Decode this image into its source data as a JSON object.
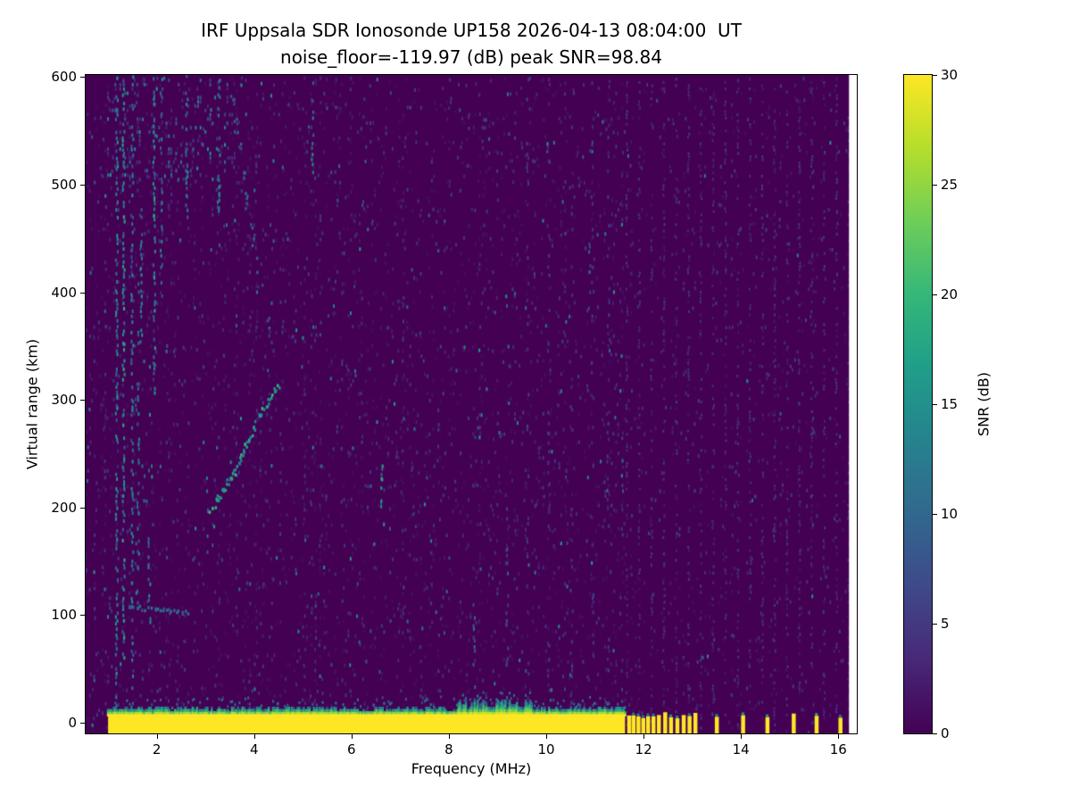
{
  "chart_data": {
    "type": "heatmap",
    "title": "IRF Uppsala SDR Ionosonde UP158 2026-04-13 08:04:00  UT",
    "subtitle": "noise_floor=-119.97 (dB) peak SNR=98.84",
    "station": "UP158",
    "timestamp_ut": "2026-04-13 08:04:00",
    "noise_floor_db": -119.97,
    "peak_snr_db": 98.84,
    "xlabel": "Frequency (MHz)",
    "ylabel": "Virtual range (km)",
    "colorbar_label": "SNR (dB)",
    "xlim": [
      0.54,
      16.38
    ],
    "ylim": [
      -10,
      602
    ],
    "xticks": [
      2,
      4,
      6,
      8,
      10,
      12,
      14,
      16
    ],
    "yticks": [
      0,
      100,
      200,
      300,
      400,
      500,
      600
    ],
    "colorbar_ticks": [
      0,
      5,
      10,
      15,
      20,
      25,
      30
    ],
    "colorbar_range": [
      0,
      30
    ],
    "grid": false,
    "legend": "none",
    "colormap": "viridis",
    "colormap_stops": [
      "#440154",
      "#482878",
      "#3e4989",
      "#31688e",
      "#26828e",
      "#1f9e89",
      "#35b779",
      "#6ece58",
      "#b5de2b",
      "#fde725"
    ],
    "features": {
      "background_snr": 0,
      "data_freq_range_mhz": [
        0.54,
        16.22
      ],
      "ground_pulse": {
        "f0": 1.0,
        "f1": 11.62,
        "y0": -10,
        "y1": 8,
        "snr": 30,
        "fringe_max_km": 16,
        "bulge": {
          "f0": 8.2,
          "f1": 9.7,
          "y1": 18
        }
      },
      "interference_spikes_mhz": [
        11.7,
        11.79,
        11.89,
        11.99,
        12.09,
        12.2,
        12.31,
        12.44,
        12.56,
        12.69,
        12.82,
        12.94,
        13.06,
        13.5,
        14.04,
        14.54,
        15.08,
        15.55,
        16.04
      ],
      "stripe_spacing_mhz": 0.253,
      "echo_trace": {
        "snr": 16,
        "points": [
          [
            3.1,
            196
          ],
          [
            3.3,
            210
          ],
          [
            3.5,
            225
          ],
          [
            3.7,
            243
          ],
          [
            3.85,
            258
          ],
          [
            4.0,
            272
          ],
          [
            4.15,
            288
          ],
          [
            4.3,
            300
          ],
          [
            4.42,
            308
          ],
          [
            4.55,
            311
          ]
        ]
      },
      "second_hop_trace": {
        "snr": 8,
        "points": [
          [
            3.55,
            590
          ],
          [
            3.75,
            520
          ],
          [
            3.95,
            460
          ],
          [
            4.15,
            405
          ],
          [
            4.35,
            360
          ]
        ]
      },
      "sporadic_e": {
        "snr": 10,
        "points": [
          [
            1.4,
            107
          ],
          [
            1.75,
            106
          ],
          [
            2.1,
            104
          ],
          [
            2.45,
            103
          ],
          [
            2.7,
            102
          ]
        ]
      },
      "dense_noise_region": {
        "f0": 1.0,
        "f1": 3.6,
        "y0": 505,
        "y1": 600,
        "snr_max": 18,
        "density": 0.13
      },
      "noise_streaks": [
        {
          "f": 1.18,
          "y0": 0,
          "y1": 600,
          "snr": 14,
          "density": 0.5
        },
        {
          "f": 1.32,
          "y0": 60,
          "y1": 600,
          "snr": 16,
          "density": 0.6
        },
        {
          "f": 1.5,
          "y0": 0,
          "y1": 600,
          "snr": 13,
          "density": 0.45
        },
        {
          "f": 1.62,
          "y0": 100,
          "y1": 420,
          "snr": 12,
          "density": 0.35
        },
        {
          "f": 1.68,
          "y0": 350,
          "y1": 480,
          "snr": 13,
          "density": 0.4
        },
        {
          "f": 1.85,
          "y0": 80,
          "y1": 180,
          "snr": 12,
          "density": 0.35
        },
        {
          "f": 1.95,
          "y0": 300,
          "y1": 600,
          "snr": 15,
          "density": 0.55
        },
        {
          "f": 2.1,
          "y0": 380,
          "y1": 600,
          "snr": 12,
          "density": 0.4
        },
        {
          "f": 2.6,
          "y0": 195,
          "y1": 220,
          "snr": 10,
          "density": 0.3
        },
        {
          "f": 2.62,
          "y0": 470,
          "y1": 600,
          "snr": 14,
          "density": 0.5
        },
        {
          "f": 3.05,
          "y0": 150,
          "y1": 230,
          "snr": 12,
          "density": 0.4
        },
        {
          "f": 3.28,
          "y0": 430,
          "y1": 600,
          "snr": 12,
          "density": 0.4
        },
        {
          "f": 5.2,
          "y0": 500,
          "y1": 600,
          "snr": 13,
          "density": 0.45
        },
        {
          "f": 6.62,
          "y0": 200,
          "y1": 240,
          "snr": 16,
          "density": 0.8
        },
        {
          "f": 8.52,
          "y0": 0,
          "y1": 120,
          "snr": 9,
          "density": 0.3
        },
        {
          "f": 9.2,
          "y0": 0,
          "y1": 200,
          "snr": 8,
          "density": 0.25
        },
        {
          "f": 9.62,
          "y0": -10,
          "y1": 600,
          "snr": 5,
          "density": 0.18
        },
        {
          "f": 10.06,
          "y0": -10,
          "y1": 600,
          "snr": 5,
          "density": 0.16
        },
        {
          "f": 10.52,
          "y0": -10,
          "y1": 600,
          "snr": 5,
          "density": 0.16
        },
        {
          "f": 10.9,
          "y0": 420,
          "y1": 470,
          "snr": 10,
          "density": 0.35
        },
        {
          "f": 10.95,
          "y0": -10,
          "y1": 600,
          "snr": 5,
          "density": 0.16
        },
        {
          "f": 11.28,
          "y0": -10,
          "y1": 600,
          "snr": 5,
          "density": 0.16
        }
      ],
      "speckle_density_left": 0.1,
      "speckle_density_right": 0.045
    }
  }
}
